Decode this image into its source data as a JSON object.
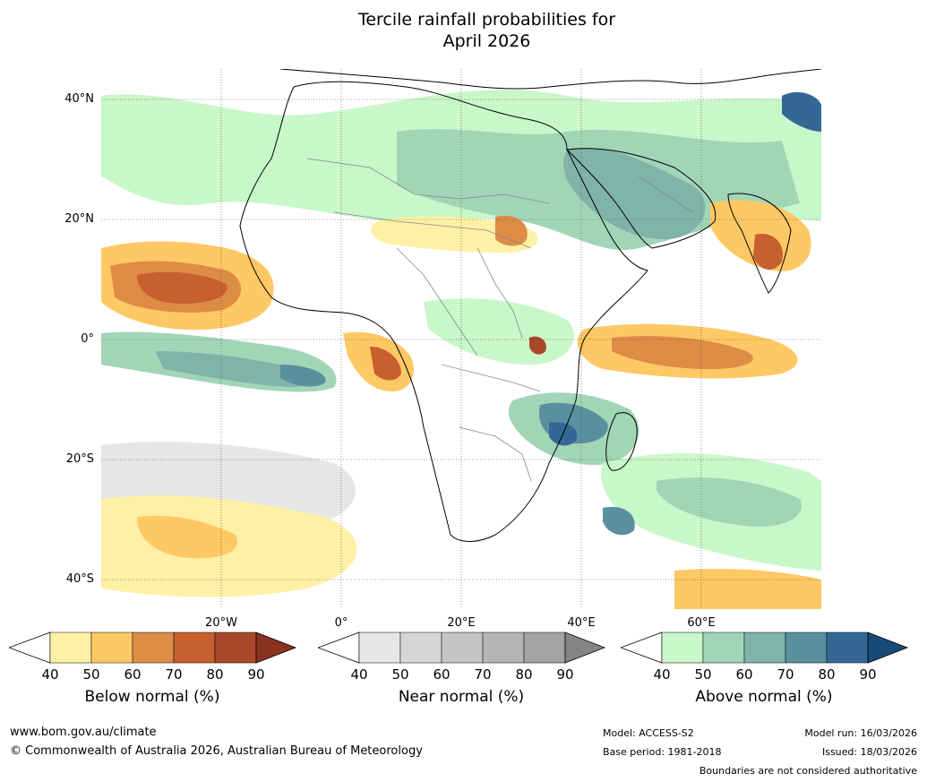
{
  "title": {
    "line1": "Tercile rainfall probabilities for",
    "line2": "April 2026"
  },
  "map": {
    "lat_labels": [
      "40°N",
      "20°N",
      "0°",
      "20°S",
      "40°S"
    ],
    "lon_labels": [
      "20°W",
      "0°",
      "20°E",
      "40°E",
      "60°E"
    ]
  },
  "colorbars": [
    {
      "title": "Below normal (%)",
      "ticks": [
        "40",
        "50",
        "60",
        "70",
        "80",
        "90"
      ],
      "colors": [
        "#fff0a6",
        "#fec864",
        "#dd8c46",
        "#c85f2f",
        "#a9472a",
        "#8a3220"
      ]
    },
    {
      "title": "Near normal (%)",
      "ticks": [
        "40",
        "50",
        "60",
        "70",
        "80",
        "90"
      ],
      "colors": [
        "#e6e6e6",
        "#d6d6d6",
        "#c5c5c5",
        "#b5b5b5",
        "#a3a3a3",
        "#858585"
      ]
    },
    {
      "title": "Above normal (%)",
      "ticks": [
        "40",
        "50",
        "60",
        "70",
        "80",
        "90"
      ],
      "colors": [
        "#c8f7c9",
        "#a2d5b6",
        "#80b4a8",
        "#5990a0",
        "#336895",
        "#1a4a7a"
      ]
    }
  ],
  "footer": {
    "url": "www.bom.gov.au/climate",
    "copyright": "© Commonwealth of Australia 2026, Australian Bureau of Meteorology",
    "model": "Model: ACCESS-S2",
    "base_period": "Base period: 1981-2018",
    "model_run": "Model run: 16/03/2026",
    "issued": "Issued: 18/03/2026",
    "disclaimer": "Boundaries are not considered authoritative"
  }
}
